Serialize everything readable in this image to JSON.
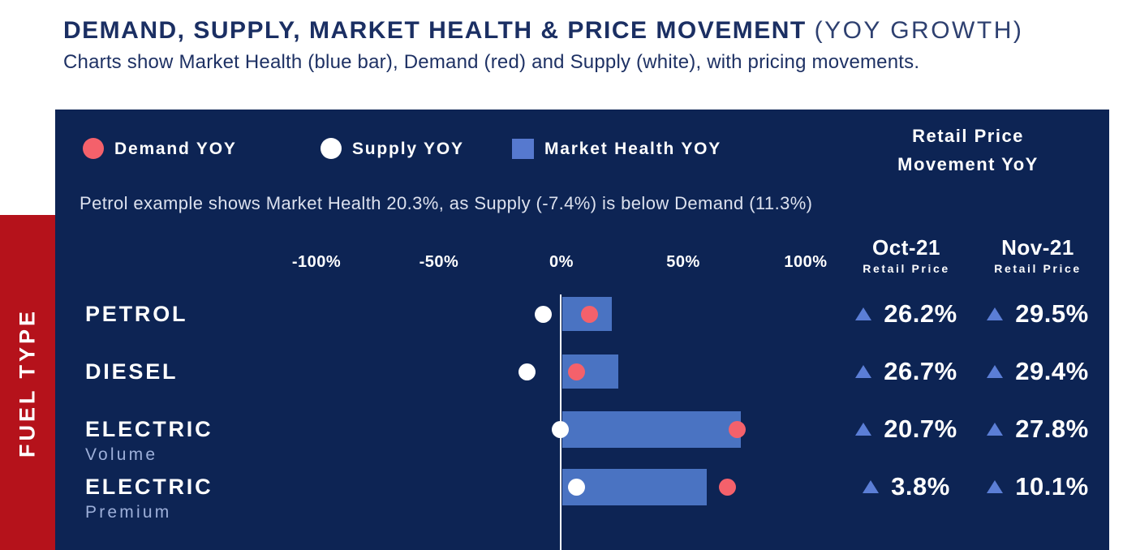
{
  "header": {
    "title_main": "DEMAND, SUPPLY, MARKET HEALTH & PRICE MOVEMENT",
    "title_suffix": "(YOY GROWTH)",
    "subtitle": "Charts show Market Health (blue bar), Demand (red) and Supply (white), with pricing movements."
  },
  "sidebar": {
    "label": "FUEL TYPE"
  },
  "panel": {
    "legend": [
      {
        "name": "demand",
        "label": "Demand YOY",
        "marker": "circle",
        "color": "#f4616b"
      },
      {
        "name": "supply",
        "label": "Supply YOY",
        "marker": "circle",
        "color": "#ffffff"
      },
      {
        "name": "market_health",
        "label": "Market Health YOY",
        "marker": "square",
        "color": "#5679cf"
      }
    ],
    "price_header_line1": "Retail Price",
    "price_header_line2": "Movement YoY",
    "note": "Petrol example shows Market Health 20.3%, as Supply (-7.4%) is below Demand (11.3%)",
    "columns": [
      {
        "month": "Oct-21",
        "sub": "Retail Price"
      },
      {
        "month": "Nov-21",
        "sub": "Retail Price"
      }
    ]
  },
  "colors": {
    "panel_bg": "#0d2454",
    "bar_blue": "#4a73c2",
    "legend_blue": "#5679cf",
    "demand_red": "#f4616b",
    "supply_white": "#ffffff",
    "sidebar_red": "#b5121b",
    "title_navy": "#1b2f63",
    "triangle_blue": "#5b7ed6",
    "muted_lavender": "#9dafd9",
    "note_text": "#dce1ee"
  },
  "chart_data": {
    "type": "bar",
    "orientation": "horizontal",
    "title": "DEMAND, SUPPLY, MARKET HEALTH & PRICE MOVEMENT (YOY GROWTH)",
    "x_ticks": [
      "-100%",
      "-50%",
      "0%",
      "50%",
      "100%"
    ],
    "x_range": [
      -100,
      100
    ],
    "zero_line": true,
    "legend_position": "top",
    "legend_entries": [
      "Demand YOY",
      "Supply YOY",
      "Market Health YOY"
    ],
    "rows": [
      {
        "label": "PETROL",
        "sublabel": "",
        "market_health_yoy_pct": 20.3,
        "demand_yoy_pct": 11.3,
        "supply_yoy_pct": -7.4,
        "oct21_retail_price": "26.2%",
        "oct21_direction": "up",
        "nov21_retail_price": "29.5%",
        "nov21_direction": "up"
      },
      {
        "label": "DIESEL",
        "sublabel": "",
        "market_health_yoy_pct": 23,
        "demand_yoy_pct": 6,
        "supply_yoy_pct": -14,
        "oct21_retail_price": "26.7%",
        "oct21_direction": "up",
        "nov21_retail_price": "29.4%",
        "nov21_direction": "up"
      },
      {
        "label": "ELECTRIC",
        "sublabel": "Volume",
        "market_health_yoy_pct": 73,
        "demand_yoy_pct": 72,
        "supply_yoy_pct": -0.5,
        "oct21_retail_price": "20.7%",
        "oct21_direction": "up",
        "nov21_retail_price": "27.8%",
        "nov21_direction": "up"
      },
      {
        "label": "ELECTRIC",
        "sublabel": "Premium",
        "market_health_yoy_pct": 59,
        "demand_yoy_pct": 68,
        "supply_yoy_pct": 6,
        "oct21_retail_price": "3.8%",
        "oct21_direction": "up",
        "nov21_retail_price": "10.1%",
        "nov21_direction": "up"
      }
    ]
  }
}
